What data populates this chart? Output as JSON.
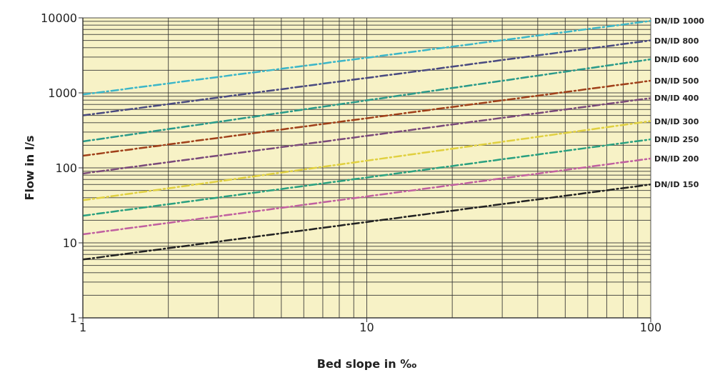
{
  "chart_data": {
    "type": "line",
    "xlabel": "Bed slope in ‰",
    "ylabel": "Flow in l/s",
    "log": "xy",
    "xlim": [
      1,
      100
    ],
    "xticks": [
      1,
      10,
      100
    ],
    "ylim": [
      1,
      10000
    ],
    "yticks": [
      1,
      10,
      100,
      1000,
      10000
    ],
    "grid": true,
    "legend": false,
    "marker": "none",
    "line_style": "dashed",
    "x": [
      1,
      100
    ],
    "series": [
      {
        "name": "DN/ID 1000",
        "color": "#3bb6c8",
        "values": [
          950,
          9100
        ]
      },
      {
        "name": "DN/ID 800",
        "color": "#4a4a80",
        "values": [
          500,
          5000
        ]
      },
      {
        "name": "DN/ID 600",
        "color": "#2a9a8a",
        "values": [
          225,
          2800
        ]
      },
      {
        "name": "DN/ID 500",
        "color": "#a0401a",
        "values": [
          145,
          1450
        ]
      },
      {
        "name": "DN/ID 400",
        "color": "#7a4a7a",
        "values": [
          84,
          850
        ]
      },
      {
        "name": "DN/ID 300",
        "color": "#e0d040",
        "values": [
          37,
          420
        ]
      },
      {
        "name": "DN/ID 250",
        "color": "#2aa080",
        "values": [
          23,
          240
        ]
      },
      {
        "name": "DN/ID 200",
        "color": "#c060a0",
        "values": [
          13,
          133
        ]
      },
      {
        "name": "DN/ID 150",
        "color": "#222222",
        "values": [
          6,
          60
        ]
      }
    ]
  }
}
